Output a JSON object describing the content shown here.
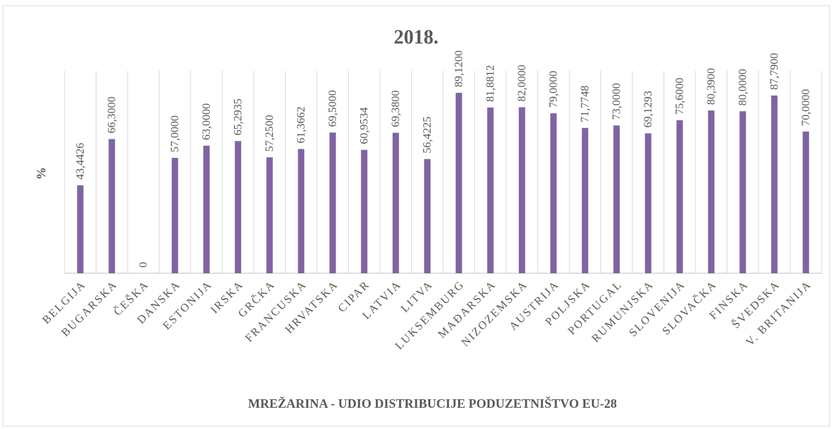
{
  "chart_data": {
    "type": "bar",
    "title": "2018.",
    "y_label": "%",
    "x_label": "MREŽARINA - UDIO DISTRIBUCIJE PODUZETNIŠTVO EU-28",
    "categories": [
      "BELGIJA",
      "BUGARSKA",
      "ČEŠKA",
      "DANSKA",
      "ESTONIJA",
      "IRSKA",
      "GRČKA",
      "FRANCUSKA",
      "HRVATSKA",
      "CIPAR",
      "LATVIA",
      "LITVA",
      "LUKSEMBURG",
      "MAĐARSKA",
      "NIZOZEMSKA",
      "AUSTRIJA",
      "POLJSKA",
      "PORTUGAL",
      "RUMUNJSKA",
      "SLOVENIJA",
      "SLOVAČKA",
      "FINSKA",
      "ŠVEDSKA",
      "V. BRITANIJA"
    ],
    "values": [
      43.4426,
      66.3,
      0,
      57,
      63,
      65.2935,
      57.25,
      61.3662,
      69.5,
      60.9534,
      69.38,
      56.4225,
      89.12,
      81.8812,
      82,
      79,
      71.7748,
      73,
      69.1293,
      75.6,
      80.39,
      80,
      87.79,
      70
    ],
    "value_labels": [
      "43,4426",
      "66,3000",
      "0",
      "57,0000",
      "63,0000",
      "65,2935",
      "57,2500",
      "61,3662",
      "69,5000",
      "60,9534",
      "69,3800",
      "56,4225",
      "89,1200",
      "81,8812",
      "82,0000",
      "79,0000",
      "71,7748",
      "73,0000",
      "69,1293",
      "75,6000",
      "80,3900",
      "80,0000",
      "87,7900",
      "70,0000"
    ],
    "color": "#8064a2",
    "ylim": [
      0,
      100
    ],
    "grid": true
  }
}
